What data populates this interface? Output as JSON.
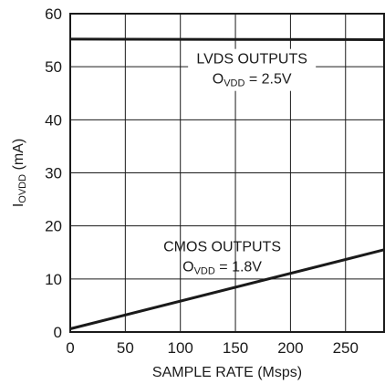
{
  "chart_data": {
    "type": "line",
    "title": "",
    "xlabel": "SAMPLE RATE (Msps)",
    "ylabel": {
      "main": "I",
      "sub": "OVDD",
      "unit": " (mA)"
    },
    "xlim": [
      0,
      285
    ],
    "ylim": [
      0,
      60
    ],
    "xticks": [
      0,
      50,
      100,
      150,
      200,
      250
    ],
    "yticks": [
      0,
      10,
      20,
      30,
      40,
      50,
      60
    ],
    "grid": true,
    "series": [
      {
        "name": "LVDS OUTPUTS",
        "x": [
          0,
          285
        ],
        "y": [
          55.2,
          55.1
        ],
        "annotation": {
          "line1": "LVDS OUTPUTS",
          "line2_main": "O",
          "line2_sub": "VDD",
          "line2_rest": " = 2.5V"
        }
      },
      {
        "name": "CMOS OUTPUTS",
        "x": [
          0,
          285
        ],
        "y": [
          0.6,
          15.5
        ],
        "annotation": {
          "line1": "CMOS OUTPUTS",
          "line2_main": "O",
          "line2_sub": "VDD",
          "line2_rest": " = 1.8V"
        }
      }
    ]
  }
}
